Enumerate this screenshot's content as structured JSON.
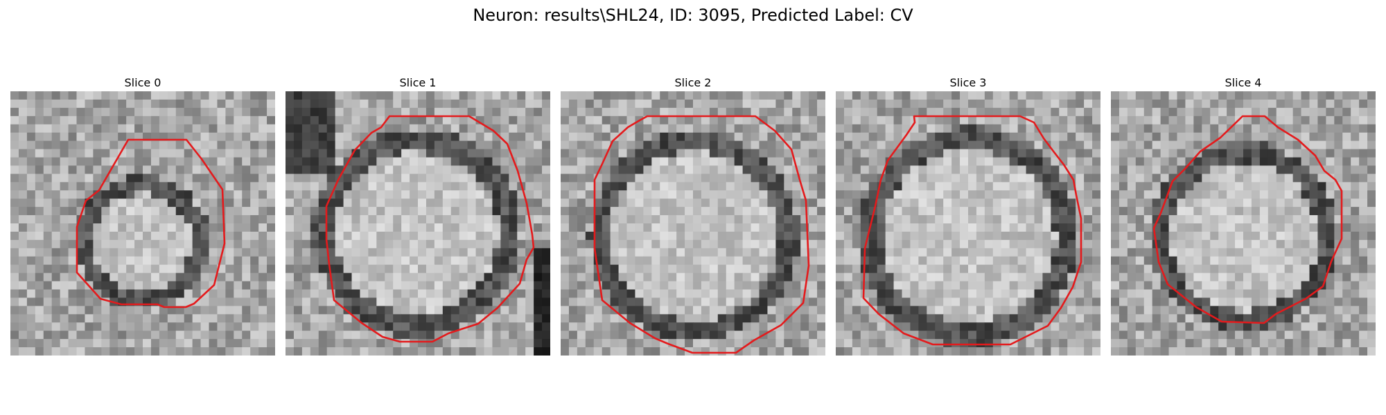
{
  "figure": {
    "title": "Neuron: results\\SHL24, ID: 3095, Predicted Label: CV"
  },
  "panels": [
    {
      "title": "Slice 0"
    },
    {
      "title": "Slice 1"
    },
    {
      "title": "Slice 2"
    },
    {
      "title": "Slice 3"
    },
    {
      "title": "Slice 4"
    }
  ],
  "colors": {
    "contour": "#e41a1c",
    "background": "#ffffff"
  }
}
